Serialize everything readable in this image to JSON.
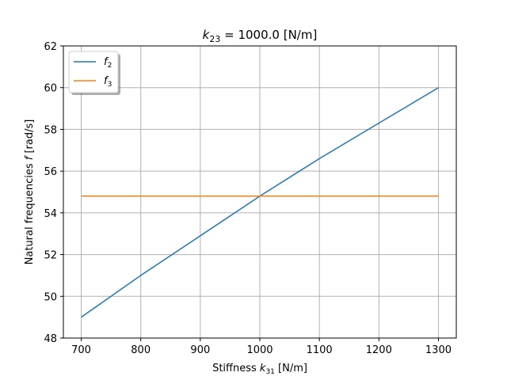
{
  "chart_data": {
    "type": "line",
    "title_prefix": "k",
    "title_sub": "23",
    "title_suffix": " = 1000.0 [N/m]",
    "xlabel_prefix": "Stiffness ",
    "xlabel_var": "k",
    "xlabel_sub": "31",
    "xlabel_suffix": " [N/m]",
    "ylabel_prefix": "Natural frequencies ",
    "ylabel_var": "f",
    "ylabel_suffix": " [rad/s]",
    "xlim": [
      670,
      1330
    ],
    "ylim": [
      48,
      62
    ],
    "xticks": [
      700,
      800,
      900,
      1000,
      1100,
      1200,
      1300
    ],
    "yticks": [
      48,
      50,
      52,
      54,
      56,
      58,
      60,
      62
    ],
    "grid": true,
    "legend_placement": "top-left",
    "series": [
      {
        "name_var": "f",
        "name_sub": "2",
        "color": "#1f77b4",
        "x": [
          700,
          800,
          900,
          1000,
          1100,
          1200,
          1300
        ],
        "y": [
          49.0,
          51.0,
          52.9,
          54.8,
          56.6,
          58.3,
          60.0
        ]
      },
      {
        "name_var": "f",
        "name_sub": "3",
        "color": "#ff7f0e",
        "x": [
          700,
          1300
        ],
        "y": [
          54.8,
          54.8
        ]
      }
    ]
  }
}
